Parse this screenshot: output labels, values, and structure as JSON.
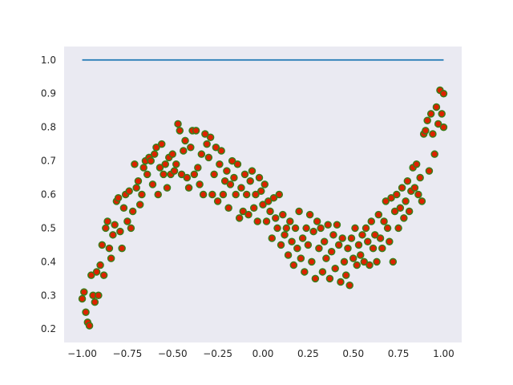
{
  "chart_data": {
    "type": "scatter",
    "grid": false,
    "xlim": [
      -1.1,
      1.1
    ],
    "ylim": [
      0.16,
      1.04
    ],
    "xticks": [
      -1.0,
      -0.75,
      -0.5,
      -0.25,
      0.0,
      0.25,
      0.5,
      0.75,
      1.0
    ],
    "xtick_labels": [
      "−1.00",
      "−0.75",
      "−0.50",
      "−0.25",
      "0.00",
      "0.25",
      "0.50",
      "0.75",
      "1.00"
    ],
    "yticks": [
      0.2,
      0.3,
      0.4,
      0.5,
      0.6,
      0.7,
      0.8,
      0.9,
      1.0
    ],
    "ytick_labels": [
      "0.2",
      "0.3",
      "0.4",
      "0.5",
      "0.6",
      "0.7",
      "0.8",
      "0.9",
      "1.0"
    ],
    "colors": {
      "plot_background": "#eaeaf2",
      "line": "#1f77b4",
      "marker_fill": "#dd2200",
      "marker_edge": "#3a7d1a"
    },
    "series": [
      {
        "type": "line",
        "x": [
          -1.0,
          1.0
        ],
        "y": [
          1.0,
          1.0
        ]
      },
      {
        "type": "scatter",
        "points": [
          [
            -1.0,
            0.29
          ],
          [
            -0.99,
            0.31
          ],
          [
            -0.98,
            0.25
          ],
          [
            -0.97,
            0.22
          ],
          [
            -0.96,
            0.21
          ],
          [
            -0.95,
            0.36
          ],
          [
            -0.94,
            0.3
          ],
          [
            -0.93,
            0.28
          ],
          [
            -0.92,
            0.37
          ],
          [
            -0.91,
            0.3
          ],
          [
            -0.9,
            0.39
          ],
          [
            -0.89,
            0.45
          ],
          [
            -0.88,
            0.36
          ],
          [
            -0.87,
            0.5
          ],
          [
            -0.86,
            0.52
          ],
          [
            -0.85,
            0.44
          ],
          [
            -0.84,
            0.41
          ],
          [
            -0.83,
            0.48
          ],
          [
            -0.82,
            0.51
          ],
          [
            -0.81,
            0.58
          ],
          [
            -0.8,
            0.59
          ],
          [
            -0.79,
            0.49
          ],
          [
            -0.78,
            0.44
          ],
          [
            -0.77,
            0.56
          ],
          [
            -0.76,
            0.6
          ],
          [
            -0.75,
            0.52
          ],
          [
            -0.74,
            0.61
          ],
          [
            -0.73,
            0.5
          ],
          [
            -0.72,
            0.55
          ],
          [
            -0.71,
            0.69
          ],
          [
            -0.7,
            0.62
          ],
          [
            -0.69,
            0.64
          ],
          [
            -0.68,
            0.57
          ],
          [
            -0.67,
            0.6
          ],
          [
            -0.66,
            0.68
          ],
          [
            -0.65,
            0.7
          ],
          [
            -0.64,
            0.66
          ],
          [
            -0.63,
            0.71
          ],
          [
            -0.62,
            0.7
          ],
          [
            -0.61,
            0.63
          ],
          [
            -0.6,
            0.72
          ],
          [
            -0.59,
            0.74
          ],
          [
            -0.58,
            0.6
          ],
          [
            -0.57,
            0.68
          ],
          [
            -0.56,
            0.75
          ],
          [
            -0.55,
            0.66
          ],
          [
            -0.54,
            0.69
          ],
          [
            -0.53,
            0.62
          ],
          [
            -0.52,
            0.71
          ],
          [
            -0.51,
            0.66
          ],
          [
            -0.5,
            0.72
          ],
          [
            -0.49,
            0.67
          ],
          [
            -0.48,
            0.69
          ],
          [
            -0.47,
            0.81
          ],
          [
            -0.46,
            0.79
          ],
          [
            -0.45,
            0.66
          ],
          [
            -0.44,
            0.73
          ],
          [
            -0.43,
            0.76
          ],
          [
            -0.42,
            0.65
          ],
          [
            -0.41,
            0.62
          ],
          [
            -0.4,
            0.74
          ],
          [
            -0.39,
            0.79
          ],
          [
            -0.38,
            0.66
          ],
          [
            -0.37,
            0.79
          ],
          [
            -0.36,
            0.68
          ],
          [
            -0.35,
            0.63
          ],
          [
            -0.34,
            0.72
          ],
          [
            -0.33,
            0.6
          ],
          [
            -0.32,
            0.78
          ],
          [
            -0.31,
            0.75
          ],
          [
            -0.3,
            0.71
          ],
          [
            -0.29,
            0.77
          ],
          [
            -0.28,
            0.6
          ],
          [
            -0.27,
            0.66
          ],
          [
            -0.26,
            0.74
          ],
          [
            -0.25,
            0.58
          ],
          [
            -0.24,
            0.69
          ],
          [
            -0.23,
            0.73
          ],
          [
            -0.22,
            0.6
          ],
          [
            -0.21,
            0.64
          ],
          [
            -0.2,
            0.67
          ],
          [
            -0.19,
            0.56
          ],
          [
            -0.18,
            0.63
          ],
          [
            -0.17,
            0.7
          ],
          [
            -0.16,
            0.65
          ],
          [
            -0.15,
            0.6
          ],
          [
            -0.14,
            0.69
          ],
          [
            -0.13,
            0.53
          ],
          [
            -0.12,
            0.62
          ],
          [
            -0.11,
            0.55
          ],
          [
            -0.1,
            0.66
          ],
          [
            -0.09,
            0.6
          ],
          [
            -0.08,
            0.54
          ],
          [
            -0.07,
            0.64
          ],
          [
            -0.06,
            0.67
          ],
          [
            -0.05,
            0.56
          ],
          [
            -0.04,
            0.6
          ],
          [
            -0.03,
            0.52
          ],
          [
            -0.02,
            0.65
          ],
          [
            -0.01,
            0.61
          ],
          [
            0.0,
            0.57
          ],
          [
            0.01,
            0.63
          ],
          [
            0.02,
            0.52
          ],
          [
            0.03,
            0.58
          ],
          [
            0.04,
            0.55
          ],
          [
            0.05,
            0.47
          ],
          [
            0.06,
            0.59
          ],
          [
            0.07,
            0.53
          ],
          [
            0.08,
            0.5
          ],
          [
            0.09,
            0.6
          ],
          [
            0.1,
            0.45
          ],
          [
            0.11,
            0.54
          ],
          [
            0.12,
            0.48
          ],
          [
            0.13,
            0.5
          ],
          [
            0.14,
            0.42
          ],
          [
            0.15,
            0.52
          ],
          [
            0.16,
            0.46
          ],
          [
            0.17,
            0.39
          ],
          [
            0.18,
            0.5
          ],
          [
            0.19,
            0.44
          ],
          [
            0.2,
            0.55
          ],
          [
            0.21,
            0.41
          ],
          [
            0.22,
            0.47
          ],
          [
            0.23,
            0.37
          ],
          [
            0.24,
            0.5
          ],
          [
            0.25,
            0.45
          ],
          [
            0.26,
            0.54
          ],
          [
            0.27,
            0.4
          ],
          [
            0.28,
            0.49
          ],
          [
            0.29,
            0.35
          ],
          [
            0.3,
            0.52
          ],
          [
            0.31,
            0.44
          ],
          [
            0.32,
            0.5
          ],
          [
            0.33,
            0.37
          ],
          [
            0.34,
            0.46
          ],
          [
            0.35,
            0.41
          ],
          [
            0.36,
            0.51
          ],
          [
            0.37,
            0.35
          ],
          [
            0.38,
            0.43
          ],
          [
            0.39,
            0.48
          ],
          [
            0.4,
            0.38
          ],
          [
            0.41,
            0.51
          ],
          [
            0.42,
            0.45
          ],
          [
            0.43,
            0.34
          ],
          [
            0.44,
            0.47
          ],
          [
            0.45,
            0.4
          ],
          [
            0.46,
            0.36
          ],
          [
            0.47,
            0.44
          ],
          [
            0.48,
            0.33
          ],
          [
            0.49,
            0.47
          ],
          [
            0.5,
            0.41
          ],
          [
            0.51,
            0.5
          ],
          [
            0.52,
            0.39
          ],
          [
            0.53,
            0.45
          ],
          [
            0.54,
            0.42
          ],
          [
            0.55,
            0.48
          ],
          [
            0.56,
            0.4
          ],
          [
            0.57,
            0.5
          ],
          [
            0.58,
            0.46
          ],
          [
            0.59,
            0.39
          ],
          [
            0.6,
            0.52
          ],
          [
            0.61,
            0.44
          ],
          [
            0.62,
            0.48
          ],
          [
            0.63,
            0.4
          ],
          [
            0.64,
            0.54
          ],
          [
            0.65,
            0.47
          ],
          [
            0.66,
            0.44
          ],
          [
            0.67,
            0.52
          ],
          [
            0.68,
            0.58
          ],
          [
            0.69,
            0.5
          ],
          [
            0.7,
            0.46
          ],
          [
            0.71,
            0.59
          ],
          [
            0.72,
            0.4
          ],
          [
            0.73,
            0.55
          ],
          [
            0.74,
            0.6
          ],
          [
            0.75,
            0.5
          ],
          [
            0.76,
            0.56
          ],
          [
            0.77,
            0.62
          ],
          [
            0.78,
            0.53
          ],
          [
            0.79,
            0.58
          ],
          [
            0.8,
            0.64
          ],
          [
            0.81,
            0.55
          ],
          [
            0.82,
            0.61
          ],
          [
            0.83,
            0.68
          ],
          [
            0.84,
            0.62
          ],
          [
            0.85,
            0.69
          ],
          [
            0.86,
            0.6
          ],
          [
            0.87,
            0.65
          ],
          [
            0.88,
            0.58
          ],
          [
            0.89,
            0.78
          ],
          [
            0.9,
            0.79
          ],
          [
            0.91,
            0.82
          ],
          [
            0.92,
            0.67
          ],
          [
            0.93,
            0.84
          ],
          [
            0.94,
            0.78
          ],
          [
            0.95,
            0.72
          ],
          [
            0.96,
            0.86
          ],
          [
            0.97,
            0.81
          ],
          [
            0.98,
            0.91
          ],
          [
            0.99,
            0.84
          ],
          [
            1.0,
            0.8
          ],
          [
            1.0,
            0.9
          ]
        ]
      }
    ]
  }
}
